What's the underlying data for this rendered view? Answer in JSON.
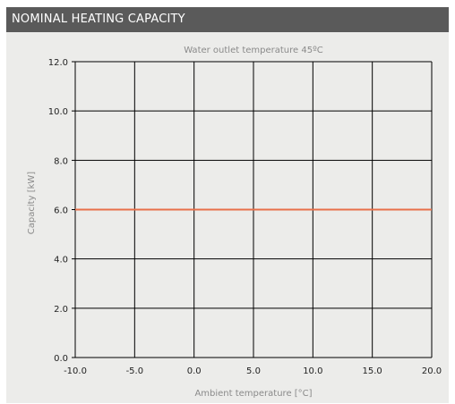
{
  "header": {
    "title": "NOMINAL HEATING CAPACITY"
  },
  "colors": {
    "header_bg": "#5a5a5a",
    "panel_bg": "#ececea",
    "grid": "#000000",
    "series": "#e8704a"
  },
  "chart_data": {
    "type": "line",
    "title": "Water outlet temperature 45ºC",
    "xlabel": "Ambient temperature [°C]",
    "ylabel": "Capacity [kW]",
    "xlim": [
      -10,
      20
    ],
    "ylim": [
      0,
      12
    ],
    "x_ticks": [
      -10,
      -5,
      0,
      5,
      10,
      15,
      20
    ],
    "y_ticks": [
      0,
      2,
      4,
      6,
      8,
      10,
      12
    ],
    "x_tick_labels": [
      "-10.0",
      "-5.0",
      "0.0",
      "5.0",
      "10.0",
      "15.0",
      "20.0"
    ],
    "y_tick_labels": [
      "0.0",
      "2.0",
      "4.0",
      "6.0",
      "8.0",
      "10.0",
      "12.0"
    ],
    "grid": true,
    "series": [
      {
        "x": [
          -10,
          20
        ],
        "values": [
          6.0,
          6.0
        ],
        "color": "#e8704a"
      }
    ]
  }
}
